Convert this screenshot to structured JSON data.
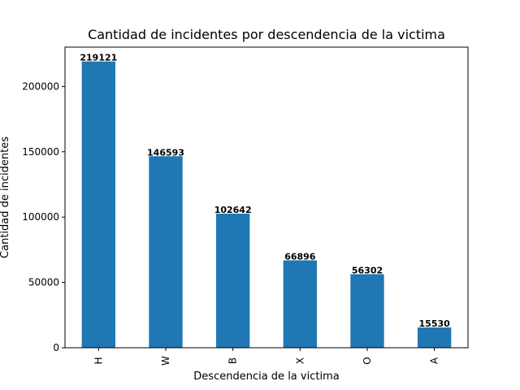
{
  "chart_data": {
    "type": "bar",
    "title": "Cantidad de incidentes por descendencia de la victima",
    "xlabel": "Descendencia de la victima",
    "ylabel": "Cantidad de incidentes",
    "categories": [
      "H",
      "W",
      "B",
      "X",
      "O",
      "A"
    ],
    "values": [
      219121,
      146593,
      102642,
      66896,
      56302,
      15530
    ],
    "yticks": [
      0,
      50000,
      100000,
      150000,
      200000
    ],
    "ylim": [
      0,
      230077
    ],
    "grid": false,
    "legend": "none",
    "bar_color": "#1f77b4"
  }
}
